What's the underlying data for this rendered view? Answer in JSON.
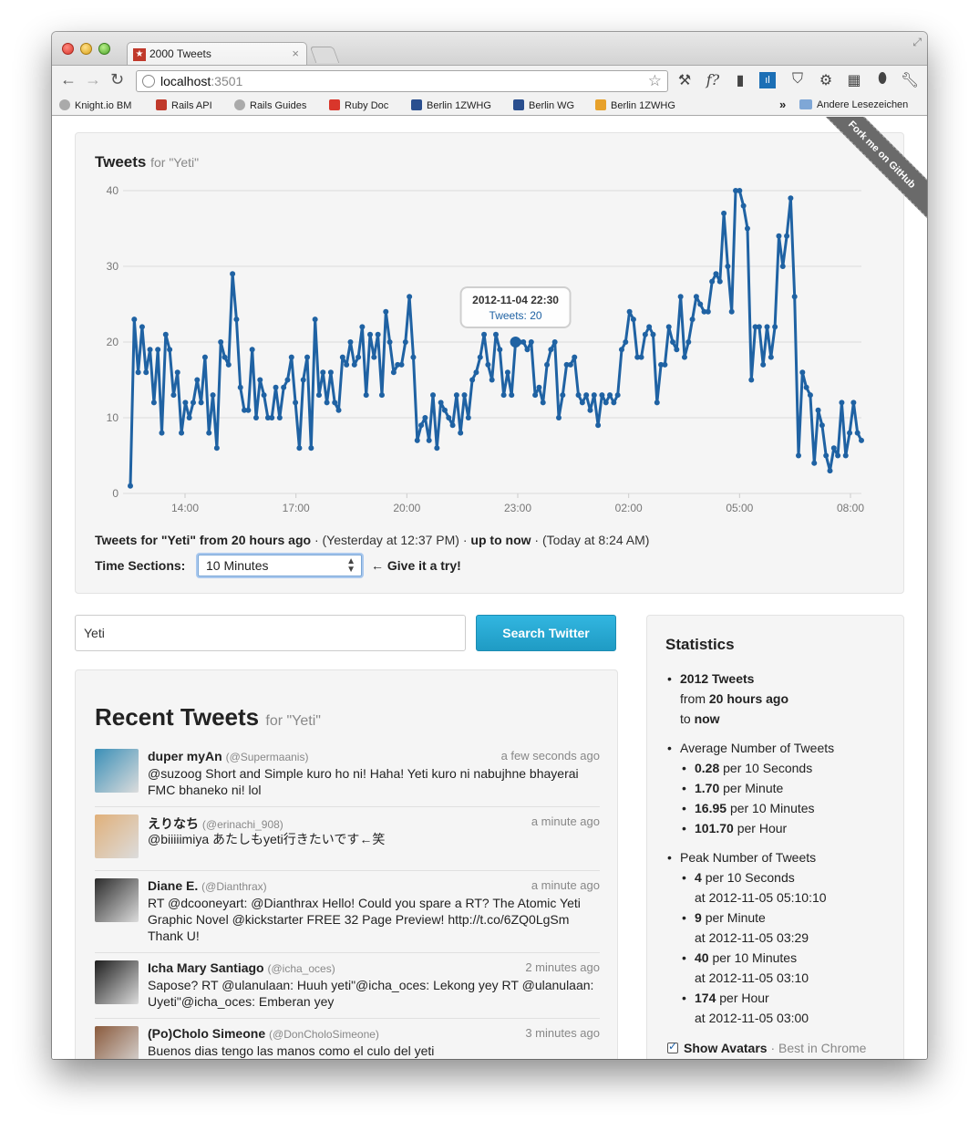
{
  "browser": {
    "tab_title": "2000 Tweets",
    "tab_close": "×",
    "url_host": "localhost",
    "url_port": ":3501",
    "toolbar_icons": [
      "wrench-icon",
      "f-icon",
      "bookmark-icon",
      "chart-icon",
      "pocket-icon",
      "gear-icon",
      "grid-icon",
      "drop-icon",
      "settings-icon"
    ],
    "bookmarks": [
      {
        "label": "Knight.io BM",
        "icon": "globe-icon"
      },
      {
        "label": "Rails API",
        "icon": "rails-icon"
      },
      {
        "label": "Rails Guides",
        "icon": "globe-icon"
      },
      {
        "label": "Ruby Doc",
        "icon": "ruby-icon"
      },
      {
        "label": "Berlin 1ZWHG",
        "icon": "doc-icon"
      },
      {
        "label": "Berlin WG",
        "icon": "doc-icon"
      },
      {
        "label": "Berlin 1ZWHG",
        "icon": "wg-icon"
      }
    ],
    "bookmarks_more": "»",
    "bookmarks_folder": "Andere Lesezeichen"
  },
  "ribbon": "Fork me on GitHub",
  "chart": {
    "title": "Tweets",
    "title_for": "for \"Yeti\"",
    "range_prefix": "Tweets for \"Yeti\" from 20 hours ago",
    "range_start": " · (Yesterday at 12:37 PM) · ",
    "range_up_to": "up to now",
    "range_end": " · (Today at 8:24 AM)",
    "time_sections_label": "Time Sections:",
    "time_sections_value": "10 Minutes",
    "hint": "← Give it a try!",
    "tooltip_date": "2012-11-04 22:30",
    "tooltip_value": "Tweets: 20"
  },
  "chart_data": {
    "type": "line",
    "xlabel": "",
    "ylabel": "",
    "ylim": [
      0,
      40
    ],
    "yticks": [
      0,
      10,
      20,
      30,
      40
    ],
    "xticks": [
      "14:00",
      "17:00",
      "20:00",
      "23:00",
      "02:00",
      "05:00",
      "08:00"
    ],
    "grid": true,
    "color": "#1f62a3",
    "highlight_index": 98,
    "values": [
      1,
      23,
      16,
      22,
      16,
      19,
      12,
      19,
      8,
      21,
      19,
      13,
      16,
      8,
      12,
      10,
      12,
      15,
      12,
      18,
      8,
      13,
      6,
      20,
      18,
      17,
      29,
      23,
      14,
      11,
      11,
      19,
      10,
      15,
      13,
      10,
      10,
      14,
      10,
      14,
      15,
      18,
      12,
      6,
      15,
      18,
      6,
      23,
      13,
      16,
      12,
      16,
      12,
      11,
      18,
      17,
      20,
      17,
      18,
      22,
      13,
      21,
      18,
      21,
      13,
      24,
      20,
      16,
      17,
      17,
      20,
      26,
      18,
      7,
      9,
      10,
      7,
      13,
      6,
      12,
      11,
      10,
      9,
      13,
      8,
      13,
      10,
      15,
      16,
      18,
      21,
      17,
      15,
      21,
      19,
      13,
      16,
      13,
      20,
      20,
      20,
      19,
      20,
      13,
      14,
      12,
      17,
      19,
      20,
      10,
      13,
      17,
      17,
      18,
      13,
      12,
      13,
      11,
      13,
      9,
      13,
      12,
      13,
      12,
      13,
      19,
      20,
      24,
      23,
      18,
      18,
      21,
      22,
      21,
      12,
      17,
      17,
      22,
      20,
      19,
      26,
      18,
      20,
      23,
      26,
      25,
      24,
      24,
      28,
      29,
      28,
      37,
      30,
      24,
      40,
      40,
      38,
      35,
      15,
      22,
      22,
      17,
      22,
      18,
      22,
      34,
      30,
      34,
      39,
      26,
      5,
      16,
      14,
      13,
      4,
      11,
      9,
      5,
      3,
      6,
      5,
      12,
      5,
      8,
      12,
      8,
      7
    ]
  },
  "search": {
    "value": "Yeti",
    "button": "Search Twitter"
  },
  "recent": {
    "title": "Recent Tweets",
    "title_for": "for \"Yeti\"",
    "tweets": [
      {
        "name": "duper myAn",
        "handle": "(@Supermaanis)",
        "time": "a few seconds ago",
        "text": "@suzoog Short and Simple kuro ho ni! Haha! Yeti kuro ni nabujhne bhayerai FMC bhaneko ni! lol",
        "avatar_color": "#3a8fb7"
      },
      {
        "name": "えりなち",
        "handle": "(@erinachi_908)",
        "time": "a minute ago",
        "text": "@biiiiimiya あたしもyeti行きたいです←笑",
        "avatar_color": "#e0b07a"
      },
      {
        "name": "Diane E.",
        "handle": "(@Dianthrax)",
        "time": "a minute ago",
        "text": "RT @dcooneyart: @Dianthrax Hello! Could you spare a RT? The Atomic Yeti Graphic Novel @kickstarter FREE 32 Page Preview! http://t.co/6ZQ0LgSm Thank U!",
        "avatar_color": "#2b2b2b"
      },
      {
        "name": "Icha Mary Santiago",
        "handle": "(@icha_oces)",
        "time": "2 minutes ago",
        "text": "Sapose? RT @ulanulaan: Huuh yeti\"@icha_oces: Lekong yey RT @ulanulaan: Uyeti\"@icha_oces: Emberan yey",
        "avatar_color": "#1e1e1e"
      },
      {
        "name": "(Po)Cholo Simeone",
        "handle": "(@DonCholoSimeone)",
        "time": "3 minutes ago",
        "text": "Buenos dias tengo las manos como el culo del yeti",
        "avatar_color": "#8a5a3c"
      }
    ]
  },
  "stats": {
    "title": "Statistics",
    "total_count": "2012 Tweets",
    "from_label": "from",
    "from_value": "20 hours ago",
    "to_label": "to",
    "to_value": "now",
    "avg_label": "Average Number of Tweets",
    "avg": [
      {
        "value": "0.28",
        "unit": "per 10 Seconds"
      },
      {
        "value": "1.70",
        "unit": "per Minute"
      },
      {
        "value": "16.95",
        "unit": "per 10 Minutes"
      },
      {
        "value": "101.70",
        "unit": "per Hour"
      }
    ],
    "peak_label": "Peak Number of Tweets",
    "peak": [
      {
        "value": "4",
        "unit": "per 10 Seconds",
        "at": "at 2012-11-05 05:10:10"
      },
      {
        "value": "9",
        "unit": "per Minute",
        "at": "at 2012-11-05 03:29"
      },
      {
        "value": "40",
        "unit": "per 10 Minutes",
        "at": "at 2012-11-05 03:10"
      },
      {
        "value": "174",
        "unit": "per Hour",
        "at": "at 2012-11-05 03:00"
      }
    ],
    "show_avatars": "Show Avatars",
    "show_avatars_note": "· Best in Chrome"
  }
}
